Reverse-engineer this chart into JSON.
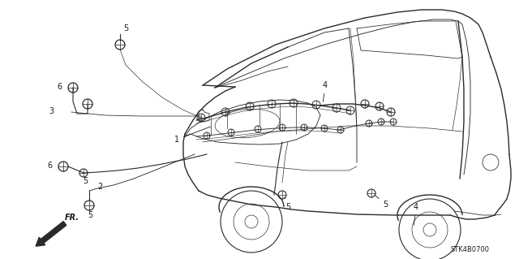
{
  "bg_color": "#ffffff",
  "line_color": "#2a2a2a",
  "text_color": "#1a1a1a",
  "diagram_code": "STK4B0700",
  "fig_width": 6.4,
  "fig_height": 3.19,
  "dpi": 100
}
